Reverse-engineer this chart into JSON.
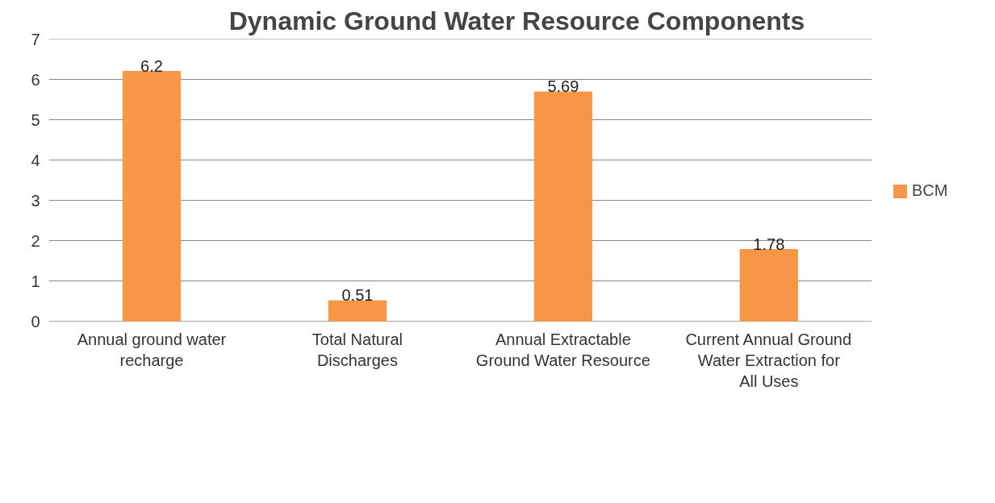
{
  "chart_data": {
    "type": "bar",
    "title": "Dynamic Ground Water Resource Components",
    "categories": [
      "Annual ground water recharge",
      "Total Natural Discharges",
      "Annual Extractable Ground Water Resource",
      "Current Annual Ground Water Extraction for All Uses"
    ],
    "series": [
      {
        "name": "BCM",
        "color": "#f79646",
        "values": [
          6.2,
          0.51,
          5.69,
          1.78
        ]
      }
    ],
    "ylim": [
      0,
      7
    ],
    "yticks": [
      0,
      1,
      2,
      3,
      4,
      5,
      6,
      7
    ],
    "grid": "y",
    "legend": "right",
    "data_labels": true
  }
}
